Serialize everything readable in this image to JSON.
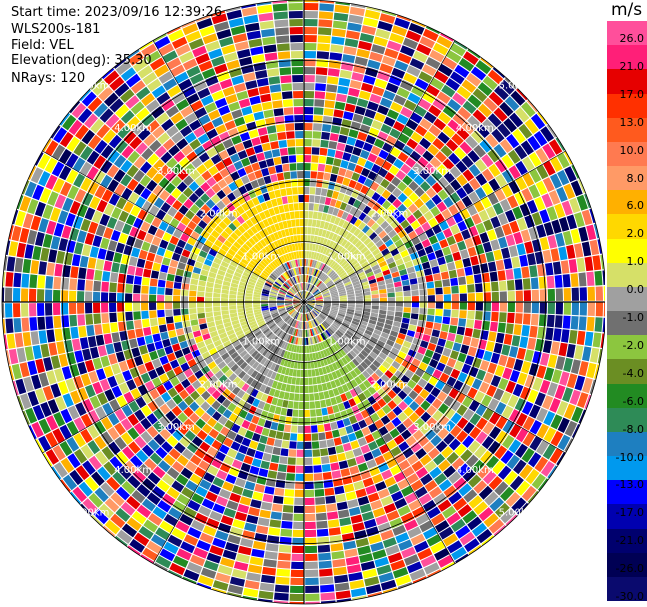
{
  "header": {
    "start_time_label": "Start time:",
    "start_time": "2023/09/16 12:39:26",
    "instrument": "WLS200s-181",
    "field_label": "Field:",
    "field": "VEL",
    "elevation_label": "Elevation(deg):",
    "elevation": "35.30",
    "nrays_label": "NRays:",
    "nrays": "120"
  },
  "colorbar": {
    "unit": "m/s",
    "ticks": [
      "26.0",
      "21.0",
      "17.0",
      "13.0",
      "10.0",
      "8.0",
      "6.0",
      "2.0",
      "1.0",
      "0.0",
      "-1.0",
      "-2.0",
      "-4.0",
      "-6.0",
      "-8.0",
      "-10.0",
      "-13.0",
      "-17.0",
      "-21.0",
      "-26.0",
      "-30.0"
    ],
    "colors": [
      "#ff4f9b",
      "#ff1f78",
      "#e60000",
      "#ff3000",
      "#ff5a1e",
      "#ff7a50",
      "#ff9a66",
      "#ffb000",
      "#ffd800",
      "#ffff00",
      "#d6e068",
      "#a0a0a0",
      "#707070",
      "#8cc63f",
      "#6b8e23",
      "#228b22",
      "#2e8b57",
      "#1e7fc0",
      "#0099ee",
      "#0000ff",
      "#0000b0",
      "#00006e",
      "#000054",
      "#0a0a6e"
    ]
  },
  "chart_data": {
    "type": "heatmap",
    "projection": "PPI (polar)",
    "field": "VEL",
    "unit": "m/s",
    "nrays": 120,
    "vmin": -30.0,
    "vmax": 26.0,
    "range_rings_km": [
      "1.00km",
      "2.00km",
      "3.00km",
      "4.00km",
      "5.00km"
    ],
    "ring_label_bearings_deg": [
      45,
      135,
      225,
      315
    ],
    "azimuth_lines_deg": [
      0,
      30,
      60,
      90,
      120,
      150,
      180,
      210,
      240,
      270,
      300,
      330
    ],
    "valid_data_max_range_km": 2.0,
    "sector_values_ms": [
      {
        "az_from": 300,
        "az_to": 360,
        "r_from_km": 0.6,
        "r_to_km": 2.0,
        "value": 6.0
      },
      {
        "az_from": 0,
        "az_to": 60,
        "r_from_km": 0.6,
        "r_to_km": 1.4,
        "value": 2.0
      },
      {
        "az_from": 240,
        "az_to": 300,
        "r_from_km": 0.6,
        "r_to_km": 1.8,
        "value": 1.5
      },
      {
        "az_from": 40,
        "az_to": 90,
        "r_from_km": 0.2,
        "r_to_km": 1.0,
        "value": 0.0
      },
      {
        "az_from": 90,
        "az_to": 140,
        "r_from_km": 0.3,
        "r_to_km": 1.6,
        "value": -2.0
      },
      {
        "az_from": 140,
        "az_to": 200,
        "r_from_km": 0.6,
        "r_to_km": 2.0,
        "value": -6.0
      },
      {
        "az_from": 200,
        "az_to": 250,
        "r_from_km": 0.3,
        "r_to_km": 1.6,
        "value": -2.0
      }
    ],
    "beyond_range": "noise (random values across full scale)"
  }
}
